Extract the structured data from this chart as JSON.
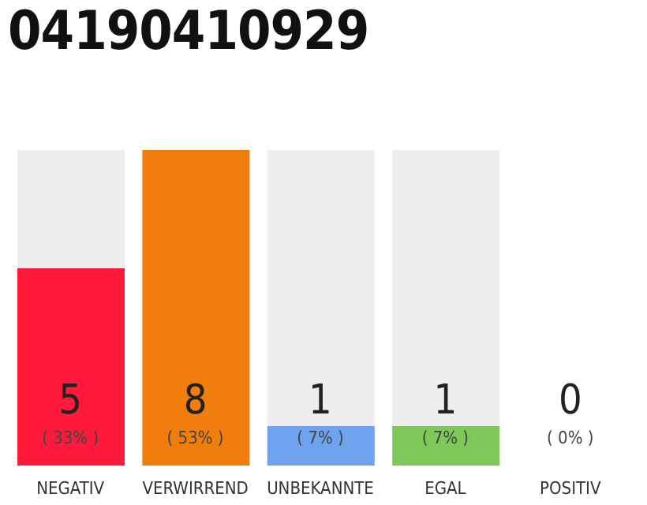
{
  "chart_data": {
    "type": "bar",
    "title": "04190410929",
    "categories": [
      "NEGATIV",
      "VERWIRREND",
      "UNBEKANNTE",
      "EGAL",
      "POSITIV"
    ],
    "values": [
      5,
      8,
      1,
      1,
      0
    ],
    "colors": [
      "#ff1a3c",
      "#f07d0c",
      "#6fa3ef",
      "#7fc95a",
      "#e0e0e0"
    ],
    "ylim": [
      0,
      8
    ],
    "tick_labels": "x",
    "data_labels": true,
    "grid": false,
    "legend": false,
    "annotations": [
      "( 33% )",
      "( 53% )",
      "( 7% )",
      "( 7% )",
      "( 0% )"
    ]
  }
}
